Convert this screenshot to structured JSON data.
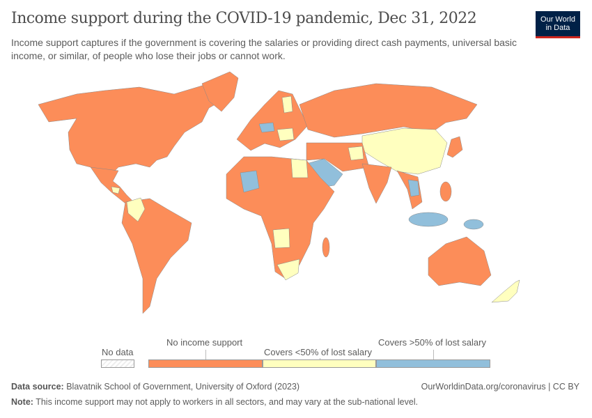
{
  "header": {
    "title": "Income support during the COVID-19 pandemic, Dec 31, 2022",
    "subtitle": "Income support captures if the government is covering the salaries or providing direct cash payments, universal basic income, or similar, of people who lose their jobs or cannot work.",
    "logo": {
      "line1": "Our World",
      "line2": "in Data",
      "bg": "#002147",
      "accent": "#ce261e"
    }
  },
  "legend": {
    "no_data": "No data",
    "categories": [
      {
        "label": "No income support",
        "color": "#fc8d59"
      },
      {
        "label": "Covers <50% of lost salary",
        "color": "#ffffbf"
      },
      {
        "label": "Covers >50% of lost salary",
        "color": "#91bfdb"
      }
    ]
  },
  "map_data": {
    "No income support": [
      "United States",
      "Canada",
      "Mexico",
      "Brazil",
      "Argentina",
      "Russia",
      "India",
      "Australia",
      "Iran",
      "Nigeria"
    ],
    "Covers <50% of lost salary": [
      "China",
      "Colombia",
      "Angola",
      "South Africa",
      "Egypt",
      "Afghanistan",
      "New Zealand",
      "Finland"
    ],
    "Covers >50% of lost salary": [
      "Saudi Arabia",
      "Mali",
      "Austria",
      "Indonesia",
      "Papua New Guinea",
      "Thailand"
    ]
  },
  "footer": {
    "source_label": "Data source:",
    "source": "Blavatnik School of Government, University of Oxford (2023)",
    "url": "OurWorldinData.org/coronavirus | CC BY",
    "note_label": "Note:",
    "note": "This income support may not apply to workers in all sectors, and may vary at the sub-national level."
  }
}
